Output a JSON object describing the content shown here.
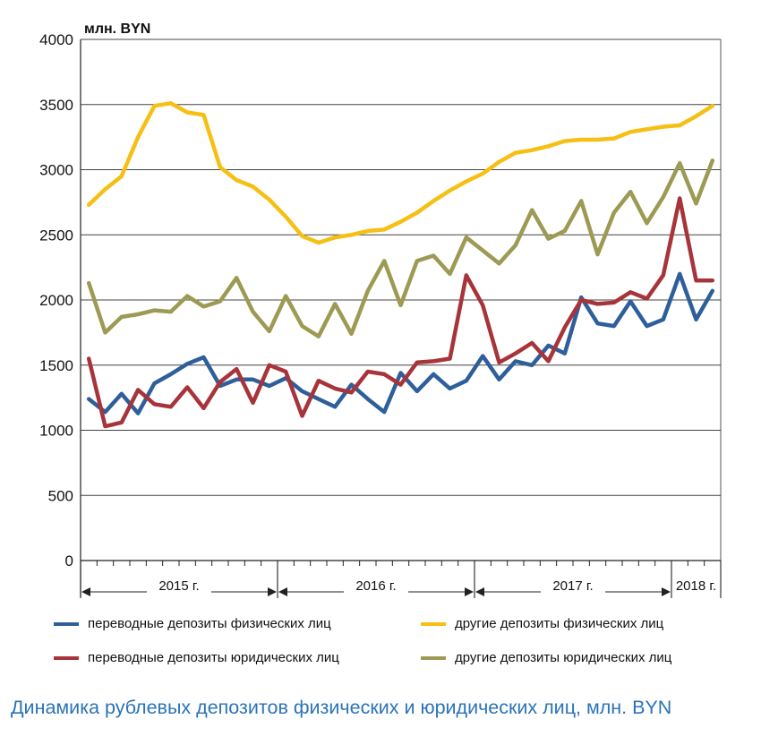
{
  "caption": "Динамика рублевых депозитов физических и юридических лиц, млн. BYN",
  "chart_data": {
    "type": "line",
    "unit_label": "млн. BYN",
    "ylim": [
      0,
      4000
    ],
    "yticks": [
      0,
      500,
      1000,
      1500,
      2000,
      2500,
      3000,
      3500,
      4000
    ],
    "grid": true,
    "legend_position": "bottom",
    "x": [
      "2015-01",
      "2015-02",
      "2015-03",
      "2015-04",
      "2015-05",
      "2015-06",
      "2015-07",
      "2015-08",
      "2015-09",
      "2015-10",
      "2015-11",
      "2015-12",
      "2016-01",
      "2016-02",
      "2016-03",
      "2016-04",
      "2016-05",
      "2016-06",
      "2016-07",
      "2016-08",
      "2016-09",
      "2016-10",
      "2016-11",
      "2016-12",
      "2017-01",
      "2017-02",
      "2017-03",
      "2017-04",
      "2017-05",
      "2017-06",
      "2017-07",
      "2017-08",
      "2017-09",
      "2017-10",
      "2017-11",
      "2017-12",
      "2018-01",
      "2018-02",
      "2018-03"
    ],
    "year_labels": [
      "2015 г.",
      "2016 г.",
      "2017 г.",
      "2018 г."
    ],
    "series": [
      {
        "name": "переводные депозиты физических лиц",
        "color": "#2e5f9a",
        "values": [
          1240,
          1140,
          1280,
          1130,
          1360,
          1430,
          1510,
          1560,
          1340,
          1390,
          1390,
          1340,
          1400,
          1300,
          1240,
          1180,
          1350,
          1240,
          1140,
          1440,
          1300,
          1430,
          1320,
          1380,
          1570,
          1390,
          1530,
          1500,
          1650,
          1590,
          2020,
          1820,
          1800,
          1990,
          1800,
          1850,
          2200,
          1850,
          2070
        ]
      },
      {
        "name": "переводные депозиты юридических лиц",
        "color": "#a7343a",
        "values": [
          1550,
          1030,
          1060,
          1310,
          1200,
          1180,
          1330,
          1170,
          1370,
          1470,
          1210,
          1500,
          1450,
          1110,
          1380,
          1320,
          1290,
          1450,
          1430,
          1350,
          1520,
          1530,
          1550,
          2190,
          1960,
          1520,
          1590,
          1670,
          1530,
          1790,
          2000,
          1970,
          1980,
          2060,
          2010,
          2190,
          2780,
          2150,
          2150
        ]
      },
      {
        "name": "другие депозиты физических лиц",
        "color": "#f6bf14",
        "values": [
          2730,
          2850,
          2950,
          3250,
          3490,
          3510,
          3440,
          3420,
          3020,
          2920,
          2870,
          2770,
          2640,
          2490,
          2440,
          2480,
          2500,
          2530,
          2540,
          2600,
          2670,
          2760,
          2840,
          2910,
          2970,
          3060,
          3130,
          3150,
          3180,
          3220,
          3230,
          3230,
          3240,
          3290,
          3310,
          3330,
          3340,
          3410,
          3490
        ]
      },
      {
        "name": "другие депозиты юридических лиц",
        "color": "#9d9a53",
        "values": [
          2130,
          1750,
          1870,
          1890,
          1920,
          1910,
          2030,
          1950,
          1990,
          2170,
          1910,
          1760,
          2030,
          1800,
          1720,
          1970,
          1740,
          2070,
          2300,
          1960,
          2300,
          2340,
          2200,
          2480,
          2380,
          2280,
          2420,
          2690,
          2470,
          2530,
          2760,
          2350,
          2670,
          2830,
          2590,
          2790,
          3050,
          2740,
          3070
        ]
      }
    ]
  }
}
